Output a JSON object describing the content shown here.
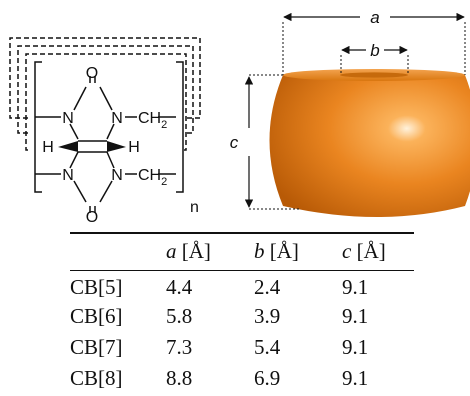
{
  "structure": {
    "atoms": {
      "O_top": "O",
      "O_bottom": "O",
      "N_top_left": "N",
      "N_top_right": "N",
      "N_bottom_left": "N",
      "N_bottom_right": "N",
      "H_left": "H",
      "H_right": "H",
      "CH2_top": "CH",
      "CH2_top_sub": "2",
      "CH2_bottom": "CH",
      "CH2_bottom_sub": "2",
      "repeat_n": "n"
    }
  },
  "model": {
    "color": "#e8801a",
    "labels": {
      "a": "a",
      "b": "b",
      "c": "c"
    }
  },
  "table": {
    "headers": [
      {
        "var": "",
        "unit": ""
      },
      {
        "var": "a",
        "unit": "[Å]"
      },
      {
        "var": "b",
        "unit": "[Å]"
      },
      {
        "var": "c",
        "unit": "[Å]"
      }
    ],
    "rows": [
      [
        "CB[5]",
        "4.4",
        "2.4",
        "9.1"
      ],
      [
        "CB[6]",
        "5.8",
        "3.9",
        "9.1"
      ],
      [
        "CB[7]",
        "7.3",
        "5.4",
        "9.1"
      ],
      [
        "CB[8]",
        "8.8",
        "6.9",
        "9.1"
      ]
    ]
  }
}
